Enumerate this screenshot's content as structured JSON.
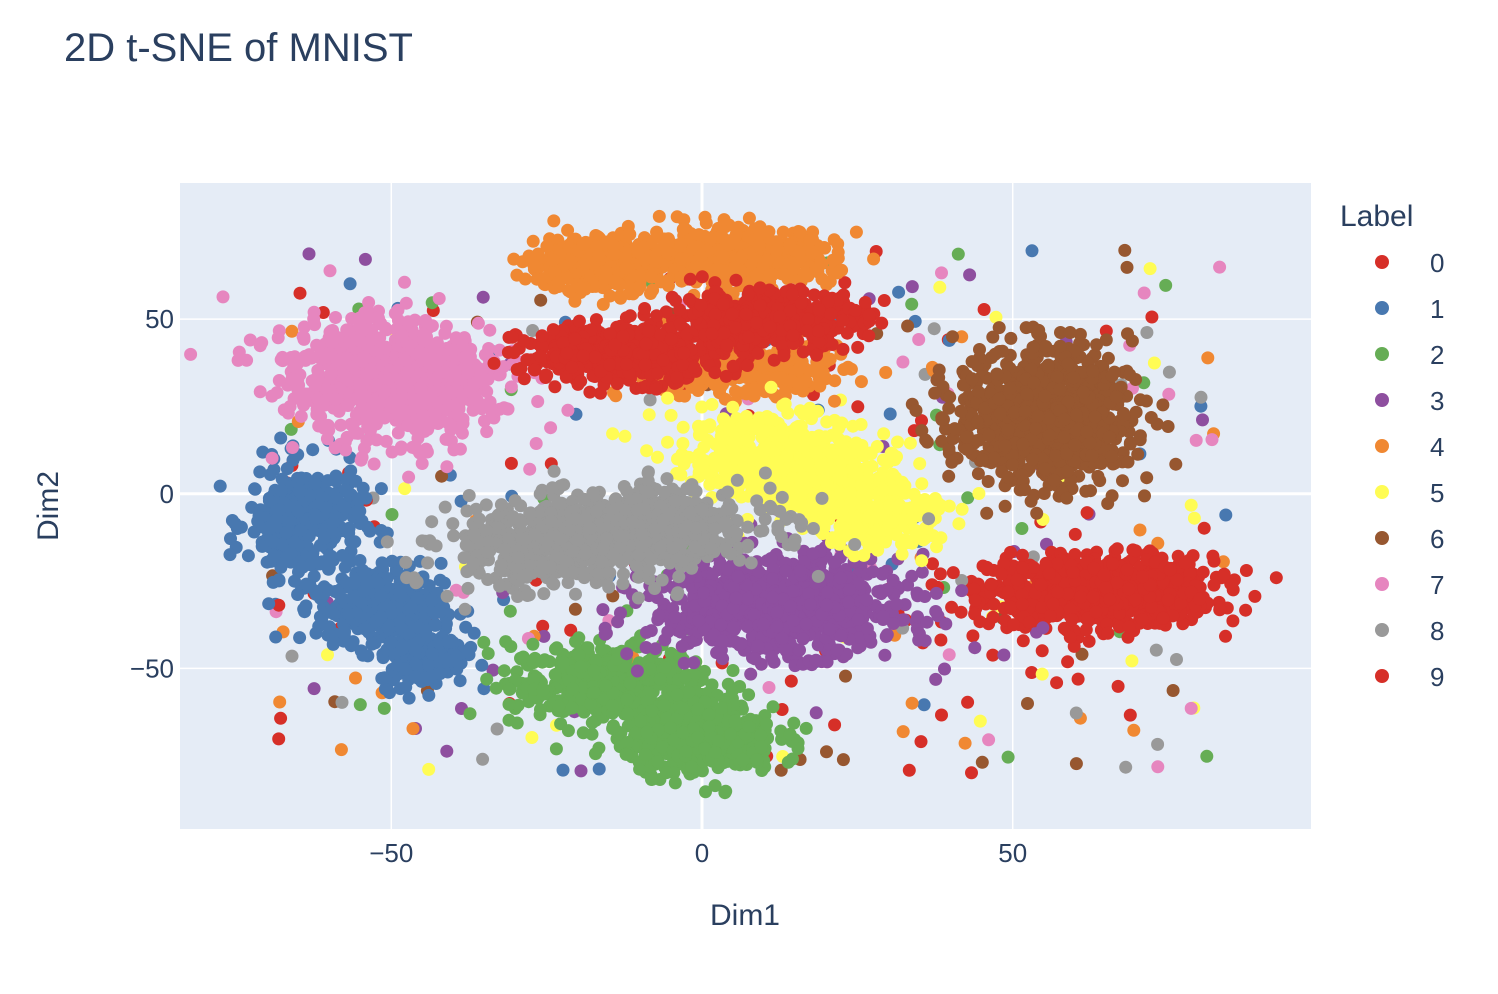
{
  "chart_data": {
    "type": "scatter",
    "title": "2D t-SNE of MNIST",
    "xlabel": "Dim1",
    "ylabel": "Dim2",
    "xlim": [
      -84,
      98
    ],
    "ylim": [
      -96,
      89
    ],
    "xticks": [
      -50,
      0,
      50
    ],
    "yticks": [
      -50,
      0,
      50
    ],
    "xtick_labels": [
      "−50",
      "0",
      "50"
    ],
    "ytick_labels": [
      "−50",
      "0",
      "50"
    ],
    "grid": true,
    "legend": {
      "title": "Label",
      "placement": "right"
    },
    "series": [
      {
        "name": "0",
        "color": "#d62f28",
        "clusters": [
          {
            "cx": 64,
            "cy": -28,
            "sx": 9,
            "sy": 5,
            "rot": 0,
            "n": 900
          }
        ]
      },
      {
        "name": "1",
        "color": "#4878b0",
        "clusters": [
          {
            "cx": -64,
            "cy": -8,
            "sx": 4.5,
            "sy": 8,
            "rot": 0,
            "n": 350
          },
          {
            "cx": -52,
            "cy": -32,
            "sx": 5,
            "sy": 6,
            "rot": 0,
            "n": 300
          },
          {
            "cx": -45,
            "cy": -45,
            "sx": 3.5,
            "sy": 5,
            "rot": 0,
            "n": 200
          }
        ]
      },
      {
        "name": "2",
        "color": "#66ad55",
        "clusters": [
          {
            "cx": -15,
            "cy": -55,
            "sx": 8,
            "sy": 6,
            "rot": 0,
            "n": 450
          },
          {
            "cx": 0,
            "cy": -70,
            "sx": 6,
            "sy": 5,
            "rot": 0,
            "n": 450
          }
        ]
      },
      {
        "name": "3",
        "color": "#8e4f9f",
        "clusters": [
          {
            "cx": 12,
            "cy": -32,
            "sx": 10,
            "sy": 7,
            "rot": 0,
            "n": 900
          }
        ]
      },
      {
        "name": "4",
        "color": "#f08832",
        "clusters": [
          {
            "cx": -17,
            "cy": 66,
            "sx": 5.5,
            "sy": 4,
            "rot": 0,
            "n": 350
          },
          {
            "cx": 5,
            "cy": 68,
            "sx": 8,
            "sy": 4,
            "rot": 0,
            "n": 500
          },
          {
            "cx": 5,
            "cy": 35,
            "sx": 9,
            "sy": 3.5,
            "rot": 0,
            "n": 300
          }
        ]
      },
      {
        "name": "5",
        "color": "#fffc54",
        "clusters": [
          {
            "cx": 15,
            "cy": 8,
            "sx": 9,
            "sy": 6,
            "rot": -0.5,
            "n": 750
          },
          {
            "cx": 28,
            "cy": -8,
            "sx": 5,
            "sy": 4,
            "rot": 0,
            "n": 200
          }
        ]
      },
      {
        "name": "6",
        "color": "#975730",
        "clusters": [
          {
            "cx": 55,
            "cy": 22,
            "sx": 7,
            "sy": 10,
            "rot": 0,
            "n": 900
          }
        ]
      },
      {
        "name": "7",
        "color": "#e686bf",
        "clusters": [
          {
            "cx": -50,
            "cy": 33,
            "sx": 8,
            "sy": 9,
            "rot": 0.4,
            "n": 900
          }
        ]
      },
      {
        "name": "8",
        "color": "#999999",
        "clusters": [
          {
            "cx": -15,
            "cy": -12,
            "sx": 12,
            "sy": 6,
            "rot": 0.2,
            "n": 950
          }
        ]
      },
      {
        "name": "9",
        "color": "#d62f28",
        "clusters": [
          {
            "cx": -13,
            "cy": 40,
            "sx": 8,
            "sy": 4,
            "rot": 0,
            "n": 500
          },
          {
            "cx": 10,
            "cy": 50,
            "sx": 8,
            "sy": 4,
            "rot": 0,
            "n": 450
          }
        ]
      }
    ]
  }
}
